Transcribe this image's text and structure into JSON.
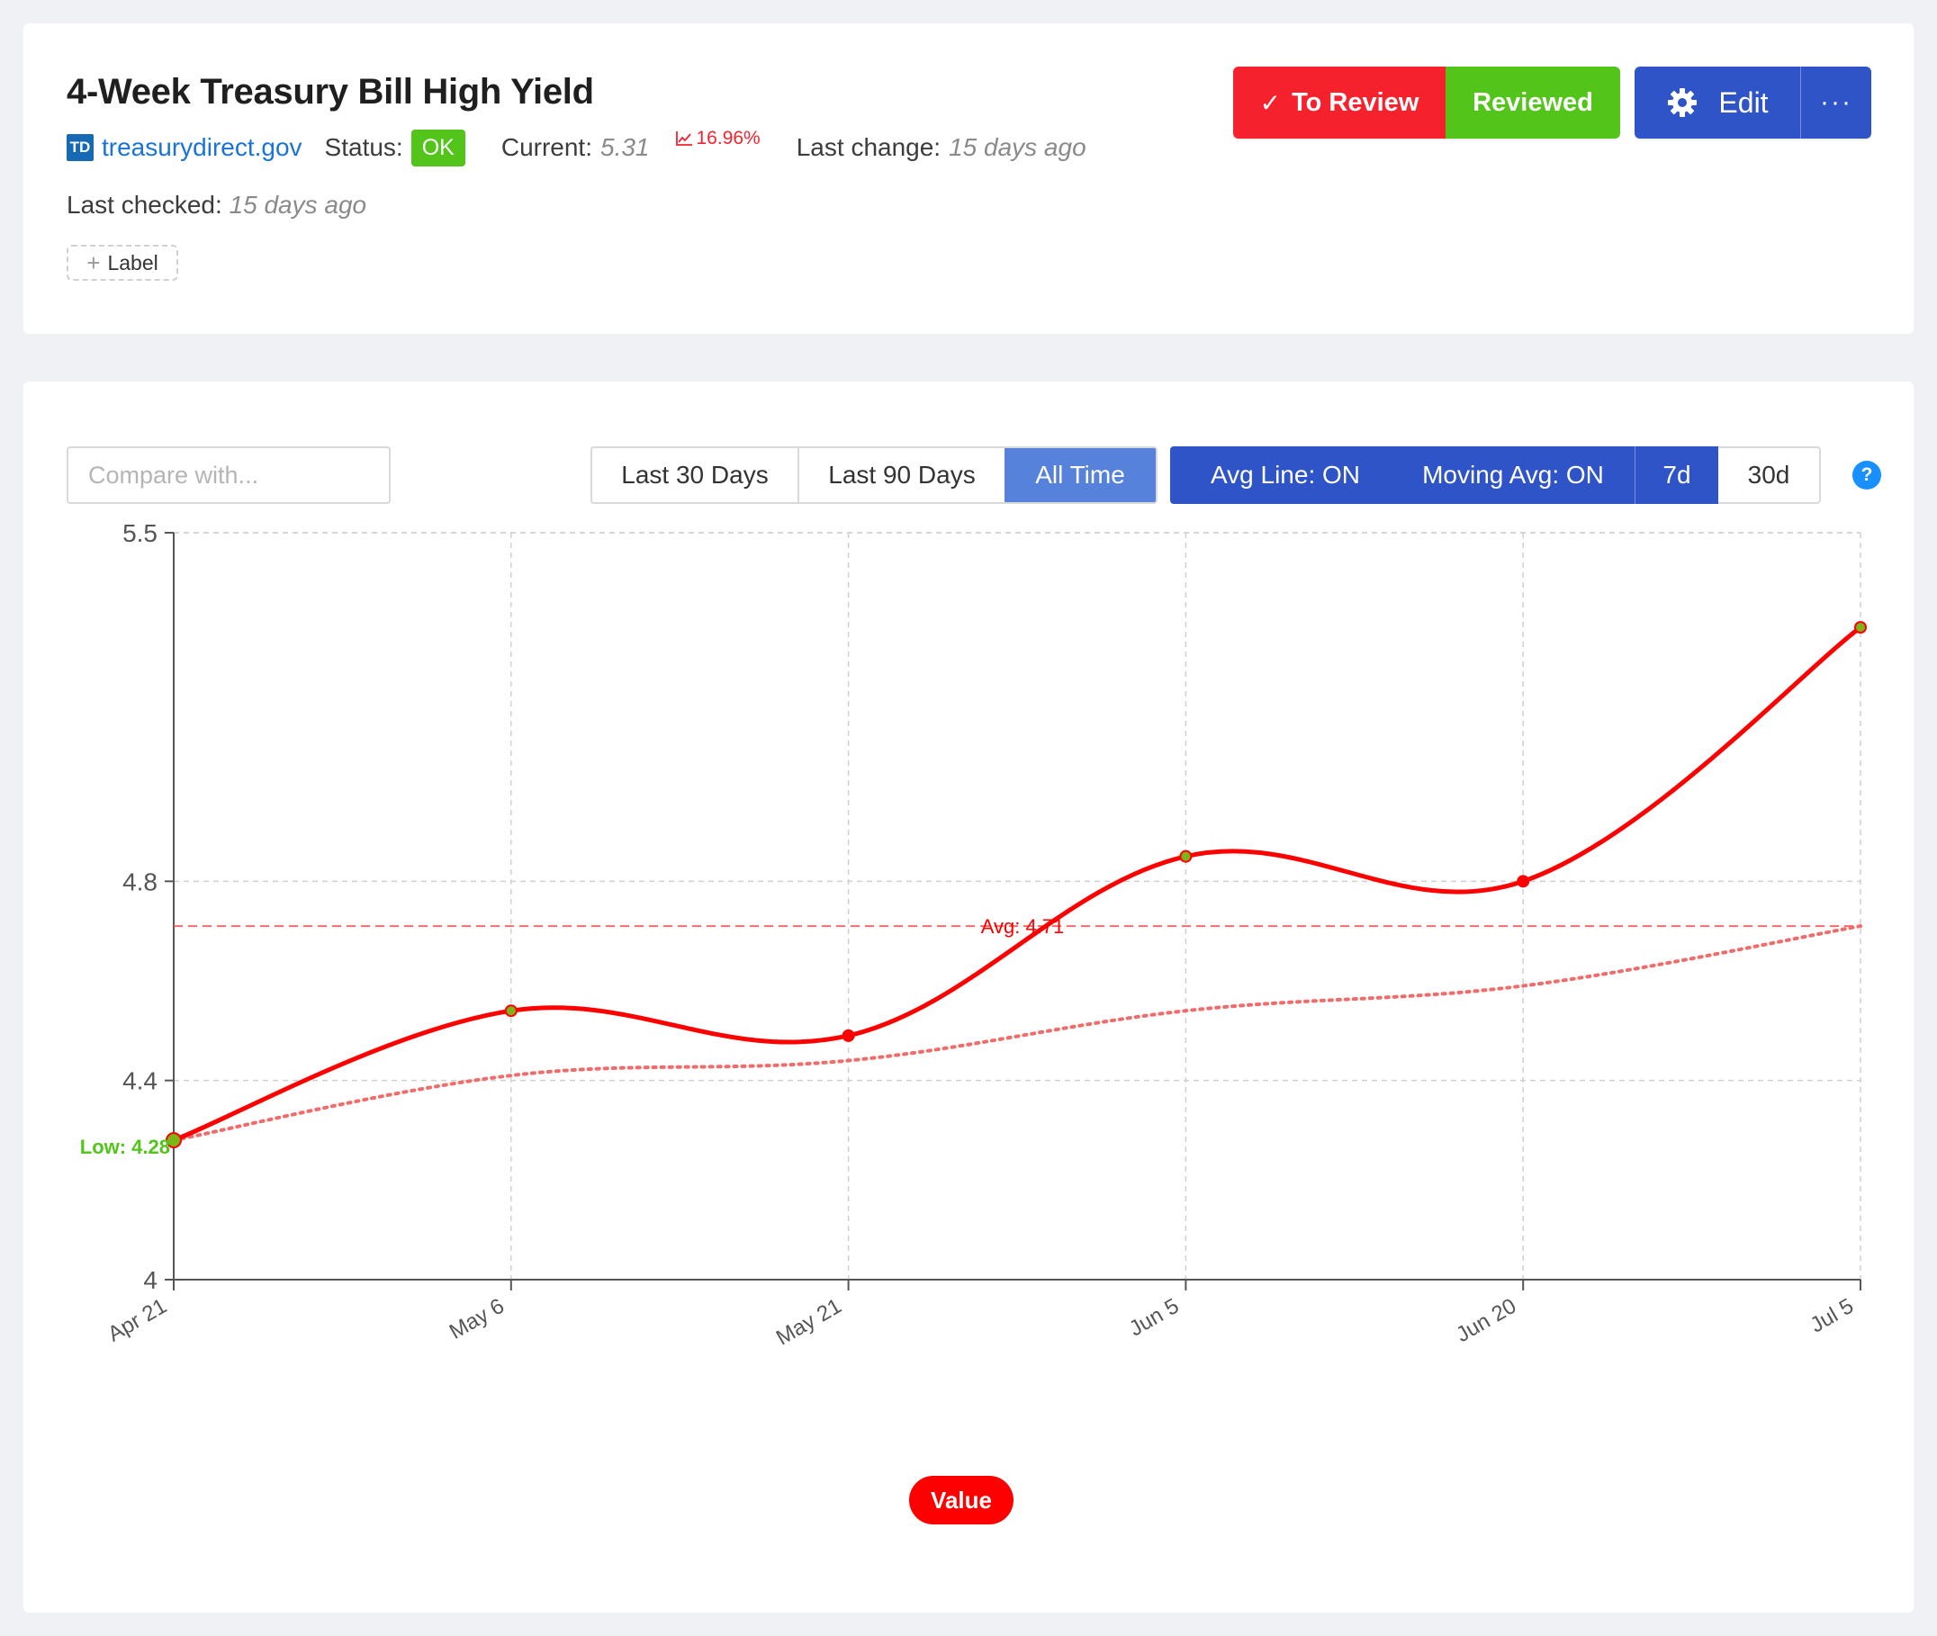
{
  "header": {
    "title": "4-Week Treasury Bill High Yield",
    "favicon_text": "TD",
    "site": "treasurydirect.gov",
    "status_label": "Status:",
    "status_value": "OK",
    "current_label": "Current:",
    "current_value": "5.31",
    "change_percent": "16.96%",
    "last_change_label": "Last change:",
    "last_change_value": "15 days ago",
    "last_checked_label": "Last checked:",
    "last_checked_value": "15 days ago",
    "label_button": "Label",
    "to_review_button": "To Review",
    "reviewed_button": "Reviewed",
    "edit_button": "Edit",
    "more_button": "···",
    "colors": {
      "danger": "#f5222d",
      "success": "#52c41a",
      "primary": "#2f54c8",
      "link": "#1a73d9"
    }
  },
  "controls": {
    "compare_placeholder": "Compare with...",
    "ranges": [
      "Last 30 Days",
      "Last 90 Days",
      "All Time"
    ],
    "selected_range": "All Time",
    "avg_line_button": "Avg Line: ON",
    "moving_avg_button": "Moving Avg: ON",
    "moving_avg_windows": [
      "7d",
      "30d"
    ],
    "selected_window": "7d",
    "help_icon": "?"
  },
  "chart_data": {
    "type": "line",
    "x": [
      "Apr 21",
      "May 6",
      "May 21",
      "Jun 5",
      "Jun 20",
      "Jul 5"
    ],
    "series": [
      {
        "name": "Value",
        "values": [
          4.28,
          4.54,
          4.49,
          4.85,
          4.8,
          5.31
        ],
        "color": "#ff0000"
      },
      {
        "values": [
          4.28,
          4.41,
          4.44,
          4.54,
          4.59,
          4.71
        ],
        "color": "#f26b6b",
        "style": "dotted"
      }
    ],
    "yticks": [
      4,
      4.4,
      4.8,
      5.5
    ],
    "ylim": [
      4,
      5.5
    ],
    "avg_line": {
      "value": 4.71,
      "label": "Avg: 4.71",
      "color": "#ff4d4f"
    },
    "low_label": "Low: 4.28",
    "low_color": "#52c41a",
    "grid": true,
    "legend": [
      "Value"
    ],
    "legend_position": "bottom"
  }
}
